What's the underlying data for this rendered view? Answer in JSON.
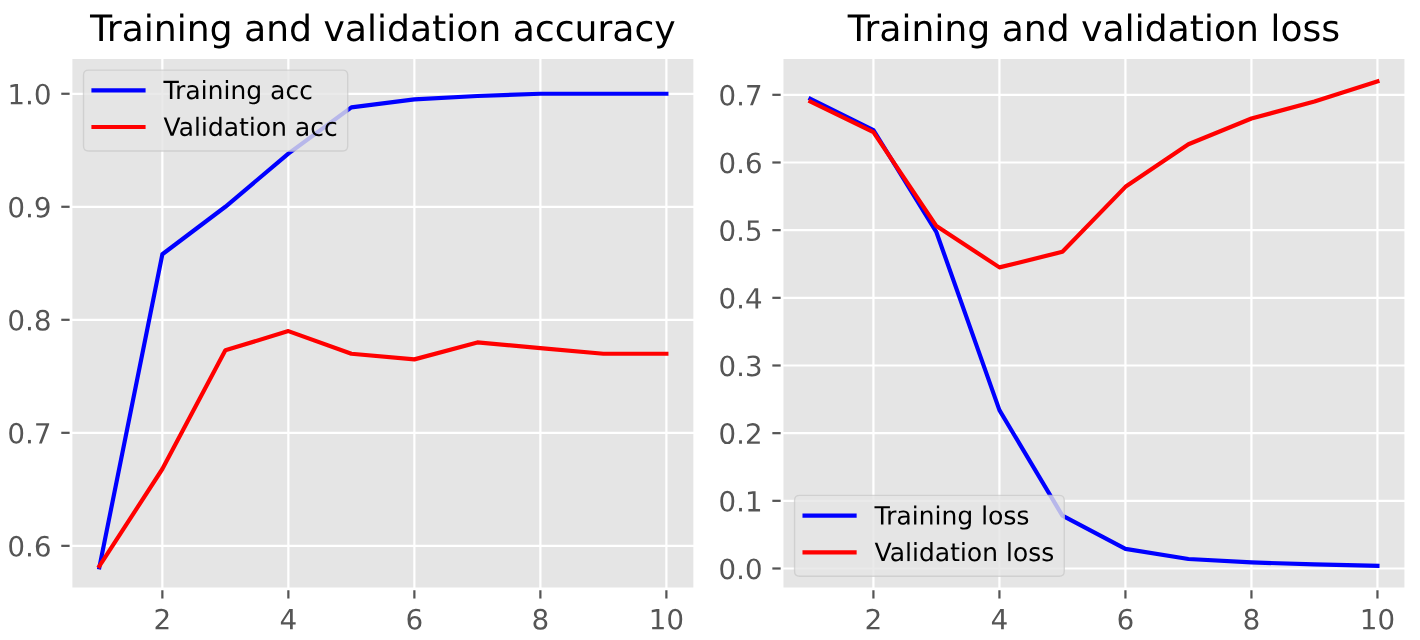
{
  "chart_data": [
    {
      "type": "line",
      "title": "Training and validation accuracy",
      "x": [
        1,
        2,
        3,
        4,
        5,
        6,
        7,
        8,
        9,
        10
      ],
      "series": [
        {
          "name": "Training acc",
          "color": "#0000ff",
          "values": [
            0.581,
            0.858,
            0.9,
            0.947,
            0.988,
            0.995,
            0.998,
            1.0,
            1.0,
            1.0
          ]
        },
        {
          "name": "Validation acc",
          "color": "#ff0000",
          "values": [
            0.582,
            0.668,
            0.773,
            0.79,
            0.77,
            0.765,
            0.78,
            0.775,
            0.77,
            0.77
          ]
        }
      ],
      "xlim": [
        0.55,
        10.45
      ],
      "xticks": [
        2,
        4,
        6,
        8,
        10
      ],
      "ylim": [
        0.562,
        1.032
      ],
      "yticks": [
        0.6,
        0.7,
        0.8,
        0.9,
        {
          "value": 1.0,
          "label": "1.0"
        }
      ],
      "grid": true,
      "legend": "top left",
      "marker": "none",
      "line_style": "solid"
    },
    {
      "type": "line",
      "title": "Training and validation loss",
      "x": [
        1,
        2,
        3,
        4,
        5,
        6,
        7,
        8,
        9,
        10
      ],
      "series": [
        {
          "name": "Training loss",
          "color": "#0000ff",
          "values": [
            0.694,
            0.648,
            0.497,
            0.234,
            0.078,
            0.029,
            0.014,
            0.009,
            0.006,
            0.004
          ]
        },
        {
          "name": "Validation loss",
          "color": "#ff0000",
          "values": [
            0.69,
            0.645,
            0.506,
            0.445,
            0.468,
            0.564,
            0.627,
            0.665,
            0.69,
            0.72
          ]
        }
      ],
      "xlim": [
        0.55,
        10.45
      ],
      "xticks": [
        2,
        4,
        6,
        8,
        10
      ],
      "ylim": [
        -0.03,
        0.755
      ],
      "yticks": [
        {
          "value": 0.0,
          "label": "0.0"
        },
        0.1,
        0.2,
        0.3,
        0.4,
        0.5,
        0.6,
        0.7
      ],
      "grid": true,
      "legend": "bottom left",
      "marker": "none",
      "line_style": "solid"
    }
  ]
}
